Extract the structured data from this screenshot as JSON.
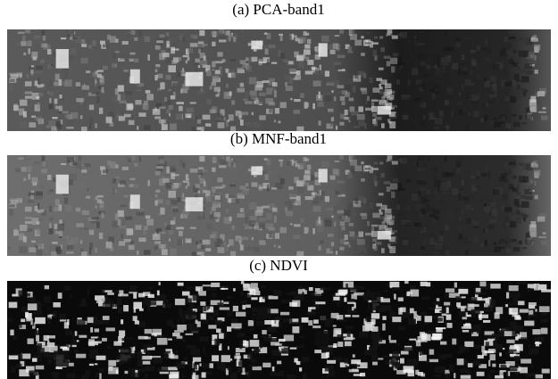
{
  "panels": [
    {
      "caption": "(a) PCA-band1"
    },
    {
      "caption": "(b) MNF-band1"
    },
    {
      "caption": "(c) NDVI"
    }
  ]
}
